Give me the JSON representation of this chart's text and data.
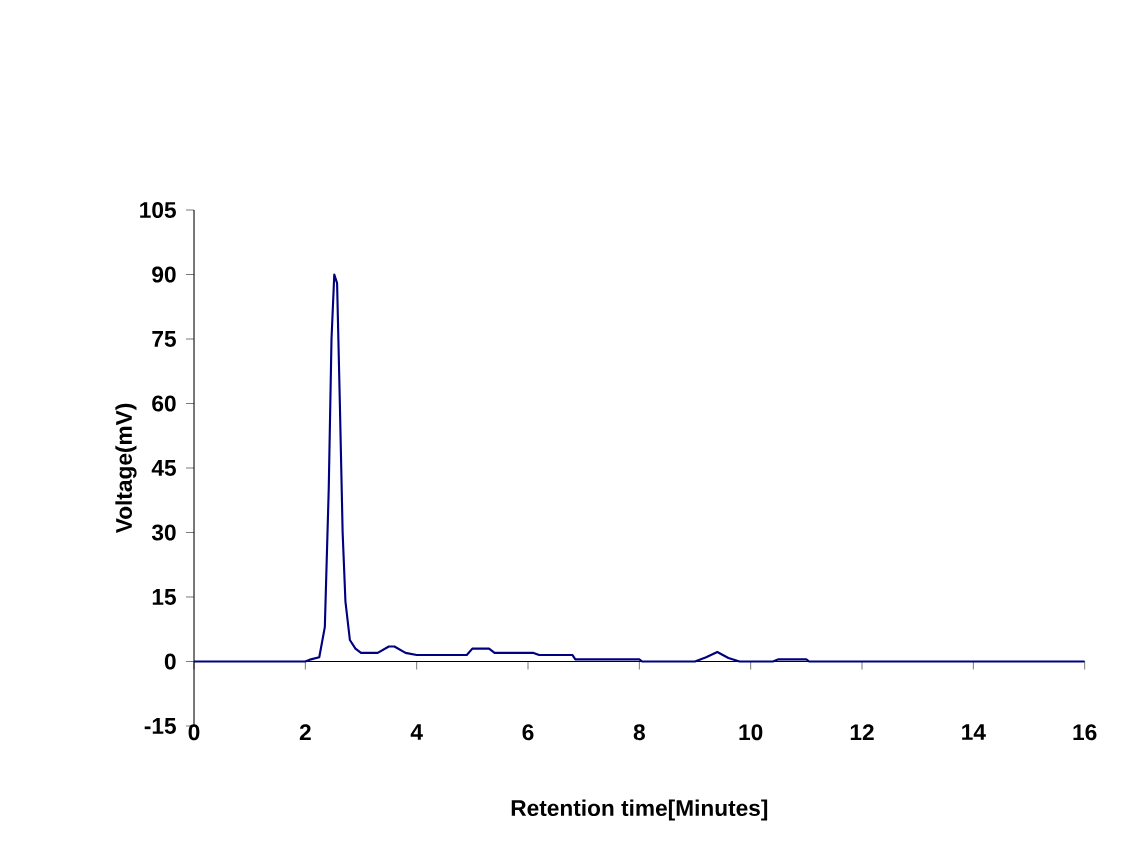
{
  "chart_data": {
    "type": "line",
    "xlabel": "Retention time[Minutes]",
    "ylabel": "Voltage(mV)",
    "xlim": [
      0,
      16
    ],
    "ylim": [
      -15,
      105
    ],
    "xticks": [
      0,
      2,
      4,
      6,
      8,
      10,
      12,
      14,
      16
    ],
    "yticks": [
      -15,
      0,
      15,
      30,
      45,
      60,
      75,
      90,
      105
    ],
    "marker": "none",
    "line_style": "solid",
    "series": [
      {
        "color": "#000080",
        "x": [
          0,
          2.0,
          2.1,
          2.25,
          2.35,
          2.42,
          2.47,
          2.52,
          2.57,
          2.62,
          2.67,
          2.72,
          2.8,
          2.9,
          3.0,
          3.3,
          3.5,
          3.6,
          3.8,
          4.0,
          4.9,
          5.0,
          5.3,
          5.4,
          6.1,
          6.2,
          6.8,
          6.85,
          8.0,
          8.05,
          9.0,
          9.2,
          9.4,
          9.6,
          9.8,
          10.4,
          10.5,
          11.0,
          11.05,
          16
        ],
        "values": [
          0,
          0,
          0.5,
          1,
          8,
          40,
          75,
          90,
          88,
          60,
          30,
          14,
          5,
          3,
          2,
          2,
          3.5,
          3.5,
          2,
          1.5,
          1.5,
          3,
          3,
          2,
          2,
          1.5,
          1.5,
          0.5,
          0.5,
          0,
          0,
          1,
          2.2,
          0.8,
          0,
          0,
          0.5,
          0.5,
          0,
          0
        ]
      }
    ]
  }
}
